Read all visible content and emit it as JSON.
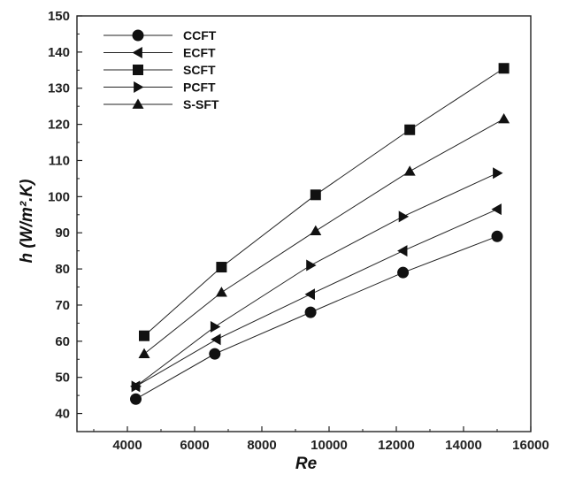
{
  "chart_data": {
    "type": "line",
    "title": "",
    "xlabel": "Re",
    "ylabel": "h (W/m².K)",
    "xlim": [
      2500,
      16000
    ],
    "ylim": [
      35,
      150
    ],
    "x_ticks": [
      4000,
      6000,
      8000,
      10000,
      12000,
      14000,
      16000
    ],
    "y_ticks": [
      40,
      50,
      60,
      70,
      80,
      90,
      100,
      110,
      120,
      130,
      140,
      150
    ],
    "grid": false,
    "legend_position": "top-left",
    "series": [
      {
        "name": "CCFT",
        "marker": "circle",
        "x": [
          4250,
          6600,
          9450,
          12200,
          15000
        ],
        "values": [
          44,
          56.5,
          68,
          79,
          89
        ]
      },
      {
        "name": "ECFT",
        "marker": "triangle-left",
        "x": [
          4250,
          6650,
          9450,
          12200,
          15000
        ],
        "values": [
          47.5,
          60.5,
          73,
          85,
          96.5
        ]
      },
      {
        "name": "SCFT",
        "marker": "square",
        "x": [
          4500,
          6800,
          9600,
          12400,
          15200
        ],
        "values": [
          61.5,
          80.5,
          100.5,
          118.5,
          135.5
        ]
      },
      {
        "name": "PCFT",
        "marker": "triangle-right",
        "x": [
          4250,
          6600,
          9450,
          12200,
          15000
        ],
        "values": [
          47.5,
          64,
          81,
          94.5,
          106.5
        ]
      },
      {
        "name": "S-SFT",
        "marker": "triangle-up",
        "x": [
          4500,
          6800,
          9600,
          12400,
          15200
        ],
        "values": [
          56.5,
          73.5,
          90.5,
          107,
          121.5
        ]
      }
    ]
  }
}
